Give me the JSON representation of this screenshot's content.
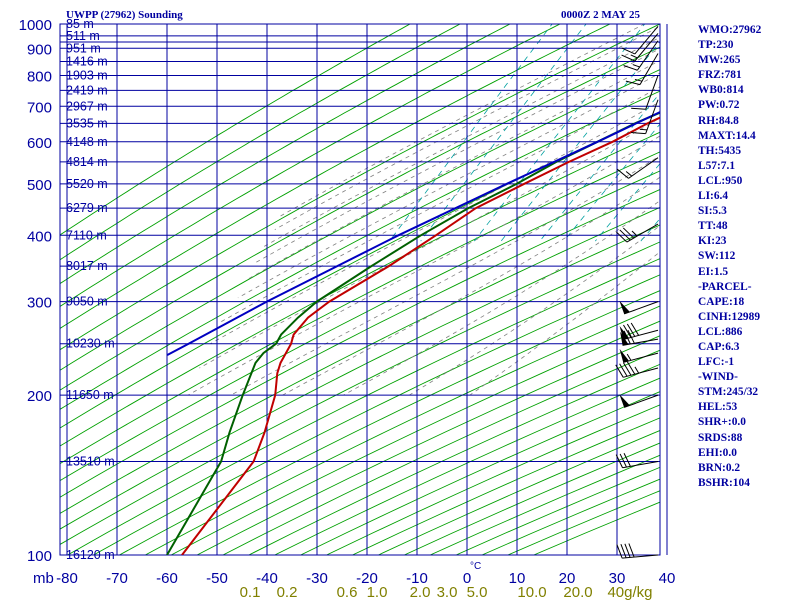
{
  "header": {
    "title": "UWPP (27962) Sounding",
    "datetime": "0000Z  2 MAY 25"
  },
  "indices": [
    "WMO:27962",
    "TP:230",
    "MW:265",
    "FRZ:781",
    "WB0:814",
    "PW:0.72",
    "RH:84.8",
    "MAXT:14.4",
    "TH:5435",
    "L57:7.1",
    "LCL:950",
    "LI:6.4",
    "SI:5.3",
    "TT:48",
    "KI:23",
    "SW:112",
    "EI:1.5",
    "-PARCEL-",
    "CAPE:18",
    "CINH:12989",
    "LCL:886",
    "CAP:6.3",
    "LFC:-1",
    "-WIND-",
    "STM:245/32",
    "HEL:53",
    "SHR+:0.0",
    "SRDS:88",
    "EHI:0.0",
    "BRN:0.2",
    "BSHR:104"
  ],
  "colors": {
    "background": "#ffffff",
    "isobar": "#0000a0",
    "isotherm": "#0000a0",
    "dry_adiabat": "#00a000",
    "moist_adiabat": "#808080",
    "mixing_ratio": "#00a0a0",
    "temperature": "#c00000",
    "dewpoint": "#006000",
    "parcel": "#0000c0",
    "wind_barb": "#000000",
    "label": "#0000a0",
    "mixing_label": "#808000"
  },
  "chart_data": {
    "type": "line",
    "diagram": "skew-T log-P",
    "x_axis": {
      "label": "°C",
      "range": [
        -80,
        40
      ],
      "ticks": [
        -80,
        -70,
        -60,
        -50,
        -40,
        -30,
        -20,
        -10,
        0,
        10,
        20,
        30,
        40
      ],
      "tick_labels": [
        "-80",
        "-70",
        "-60",
        "-50",
        "-40",
        "-30",
        "-20",
        "-10",
        "0",
        "10",
        "20",
        "30",
        "40"
      ]
    },
    "y_axis": {
      "label": "mb",
      "scale": "log",
      "range": [
        1000,
        100
      ],
      "ticks": [
        100,
        200,
        300,
        400,
        500,
        600,
        700,
        800,
        900,
        1000
      ],
      "tick_labels": [
        "100",
        "200",
        "300",
        "400",
        "500",
        "600",
        "700",
        "800",
        "900",
        "1000"
      ]
    },
    "isobars": [
      100,
      150,
      200,
      250,
      300,
      350,
      400,
      450,
      500,
      550,
      600,
      650,
      700,
      750,
      800,
      850,
      900,
      925,
      950,
      1000
    ],
    "height_labels": [
      {
        "p": 100,
        "label": "16120 m"
      },
      {
        "p": 150,
        "label": "13510 m"
      },
      {
        "p": 200,
        "label": "11650 m"
      },
      {
        "p": 250,
        "label": "10230 m"
      },
      {
        "p": 300,
        "label": "9050 m"
      },
      {
        "p": 350,
        "label": "8017 m"
      },
      {
        "p": 400,
        "label": "7110 m"
      },
      {
        "p": 450,
        "label": "6279 m"
      },
      {
        "p": 500,
        "label": "5520 m"
      },
      {
        "p": 550,
        "label": "4814 m"
      },
      {
        "p": 600,
        "label": "4148 m"
      },
      {
        "p": 650,
        "label": "3535 m"
      },
      {
        "p": 700,
        "label": "2967 m"
      },
      {
        "p": 750,
        "label": "2419 m"
      },
      {
        "p": 800,
        "label": "1903 m"
      },
      {
        "p": 850,
        "label": "1416 m"
      },
      {
        "p": 900,
        "label": "951 m"
      },
      {
        "p": 950,
        "label": "511 m"
      },
      {
        "p": 1000,
        "label": "85 m"
      }
    ],
    "mixing_ratio_labels": [
      "0.1",
      "0.2",
      "0.6",
      "1.0",
      "2.0",
      "3.0",
      "5.0",
      "10.0",
      "20.0",
      "40g/kg"
    ],
    "series": [
      {
        "name": "temperature",
        "points": [
          [
            988,
            14.5
          ],
          [
            980,
            12.0
          ],
          [
            960,
            12.5
          ],
          [
            925,
            9.5
          ],
          [
            900,
            6.0
          ],
          [
            850,
            5.0
          ],
          [
            800,
            3.5
          ],
          [
            750,
            -0.5
          ],
          [
            700,
            -6.0
          ],
          [
            650,
            -11.5
          ],
          [
            600,
            -16.5
          ],
          [
            550,
            -23.0
          ],
          [
            500,
            -29.5
          ],
          [
            450,
            -36.5
          ],
          [
            400,
            -41.5
          ],
          [
            350,
            -47.5
          ],
          [
            300,
            -55.5
          ],
          [
            280,
            -58.0
          ],
          [
            260,
            -59.0
          ],
          [
            250,
            -58.5
          ],
          [
            230,
            -58.5
          ],
          [
            220,
            -58.0
          ],
          [
            200,
            -56.0
          ],
          [
            170,
            -54.0
          ],
          [
            150,
            -53.0
          ],
          [
            100,
            -57.0
          ]
        ]
      },
      {
        "name": "dewpoint",
        "points": [
          [
            988,
            11.0
          ],
          [
            975,
            8.5
          ],
          [
            950,
            7.5
          ],
          [
            925,
            6.0
          ],
          [
            900,
            5.0
          ],
          [
            850,
            4.0
          ],
          [
            800,
            2.5
          ],
          [
            750,
            -2.5
          ],
          [
            700,
            -8.0
          ],
          [
            650,
            -14.0
          ],
          [
            600,
            -19.5
          ],
          [
            550,
            -25.5
          ],
          [
            500,
            -31.0
          ],
          [
            450,
            -38.0
          ],
          [
            400,
            -44.5
          ],
          [
            350,
            -51.0
          ],
          [
            300,
            -58.0
          ],
          [
            280,
            -60.0
          ],
          [
            260,
            -61.5
          ],
          [
            250,
            -61.5
          ],
          [
            240,
            -63.0
          ],
          [
            230,
            -63.5
          ],
          [
            200,
            -62.5
          ],
          [
            170,
            -61.0
          ],
          [
            150,
            -59.5
          ],
          [
            100,
            -60.0
          ]
        ]
      },
      {
        "name": "parcel",
        "points": [
          [
            988,
            14.5
          ],
          [
            925,
            7.5
          ],
          [
            886,
            3.0
          ],
          [
            850,
            1.5
          ],
          [
            800,
            -1.5
          ],
          [
            750,
            -4.5
          ],
          [
            700,
            -8.5
          ],
          [
            600,
            -19.5
          ],
          [
            500,
            -33.0
          ],
          [
            400,
            -49.0
          ],
          [
            300,
            -68.0
          ],
          [
            250,
            -79.0
          ],
          [
            238,
            -82.0
          ]
        ]
      }
    ],
    "wind_barbs": [
      {
        "p": 100,
        "dir": 265,
        "speed": 40
      },
      {
        "p": 150,
        "dir": 260,
        "speed": 30
      },
      {
        "p": 200,
        "dir": 250,
        "speed": 50
      },
      {
        "p": 225,
        "dir": 255,
        "speed": 45
      },
      {
        "p": 240,
        "dir": 255,
        "speed": 55
      },
      {
        "p": 255,
        "dir": 260,
        "speed": 70
      },
      {
        "p": 265,
        "dir": 255,
        "speed": 80
      },
      {
        "p": 300,
        "dir": 250,
        "speed": 50
      },
      {
        "p": 420,
        "dir": 240,
        "speed": 35
      },
      {
        "p": 560,
        "dir": 235,
        "speed": 15
      },
      {
        "p": 720,
        "dir": 200,
        "speed": 15
      },
      {
        "p": 800,
        "dir": 200,
        "speed": 10
      },
      {
        "p": 880,
        "dir": 210,
        "speed": 15
      },
      {
        "p": 930,
        "dir": 215,
        "speed": 15
      },
      {
        "p": 960,
        "dir": 220,
        "speed": 15
      },
      {
        "p": 990,
        "dir": 220,
        "speed": 10
      }
    ]
  }
}
